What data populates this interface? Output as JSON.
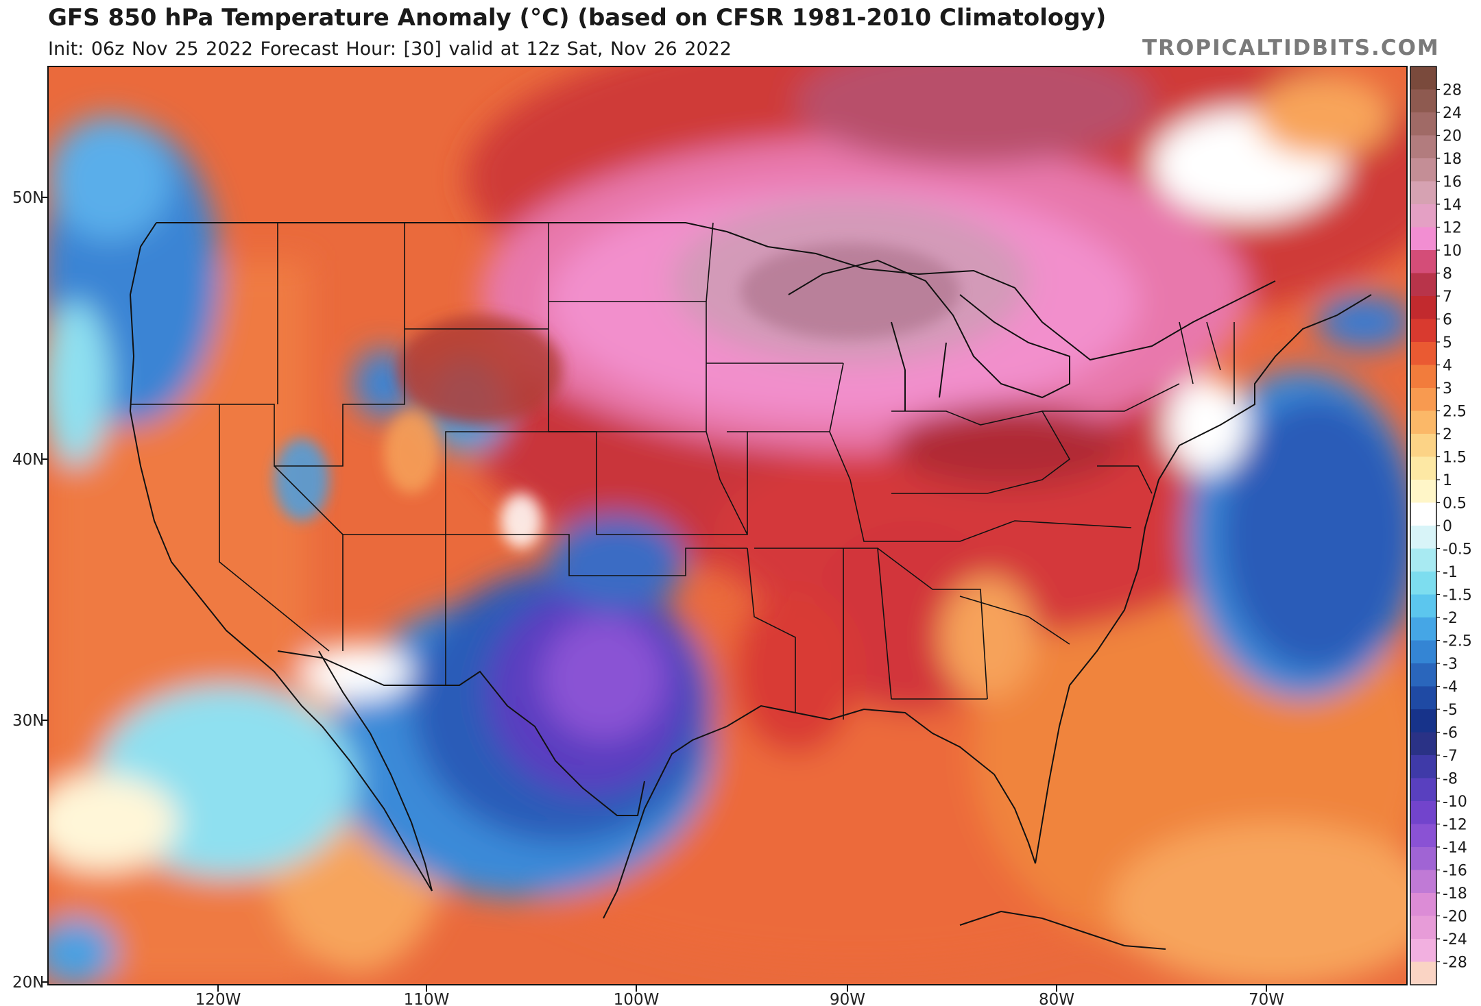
{
  "header": {
    "title": "GFS 850 hPa Temperature Anomaly (°C) (based on CFSR 1981-2010 Climatology)",
    "subtitle": "Init: 06z Nov 25 2022   Forecast Hour: [30]   valid at 12z Sat, Nov 26 2022",
    "brand": "TROPICALTIDBITS.COM"
  },
  "map": {
    "lat_labels": [
      "50N",
      "40N",
      "30N",
      "20N"
    ],
    "lon_labels": [
      "120W",
      "110W",
      "100W",
      "90W",
      "80W",
      "70W"
    ]
  },
  "colorbar": {
    "labels": [
      "28",
      "24",
      "20",
      "18",
      "16",
      "14",
      "12",
      "10",
      "8",
      "7",
      "6",
      "5",
      "4",
      "3",
      "2.5",
      "2",
      "1.5",
      "1",
      "0.5",
      "0",
      "-0.5",
      "-1",
      "-1.5",
      "-2",
      "-2.5",
      "-3",
      "-4",
      "-5",
      "-6",
      "-7",
      "-8",
      "-10",
      "-12",
      "-14",
      "-16",
      "-18",
      "-20",
      "-24",
      "-28"
    ],
    "colors": [
      "#7a4a3c",
      "#8e5a50",
      "#a06a66",
      "#b27c7e",
      "#c48e96",
      "#d6a2b2",
      "#e4a0c4",
      "#f28ed2",
      "#d44d78",
      "#b8344a",
      "#c22a2e",
      "#d93a2f",
      "#ea5a32",
      "#f27c3c",
      "#f89a50",
      "#fbb868",
      "#fcd386",
      "#fde8a4",
      "#fff6c8",
      "#ffffff",
      "#d8f4f8",
      "#a8eaf2",
      "#7dddef",
      "#5cc6ee",
      "#45a6e6",
      "#3485d4",
      "#2a66bc",
      "#1f4aa4",
      "#17338a",
      "#2a3286",
      "#3f3aa8",
      "#5940bf",
      "#7244cc",
      "#8a52d4",
      "#a064d4",
      "#c07ad6",
      "#dc8cd6",
      "#e79cd8",
      "#f2b0e0",
      "#fad4c4"
    ]
  }
}
